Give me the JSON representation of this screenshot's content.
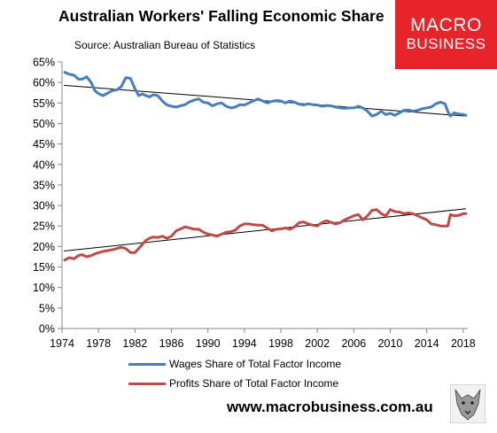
{
  "title": "Australian Workers' Falling Economic Share",
  "subtitle": "Source: Australian Bureau of Statistics",
  "logo": {
    "line1": "MACRO",
    "line2": "BUSINESS",
    "color": "#e8242b"
  },
  "url": "www.macrobusiness.com.au",
  "legend": {
    "wages": "Wages Share of Total Factor Income",
    "profits": "Profits Share of Total Factor Income"
  },
  "colors": {
    "wages": "#4a7ebb",
    "profits": "#be4b48",
    "trend": "#000000",
    "axis": "#868686"
  },
  "chart_data": {
    "type": "line",
    "title": "Australian Workers' Falling Economic Share",
    "subtitle": "Source: Australian Bureau of Statistics",
    "xlabel": "",
    "ylabel": "",
    "xlim": [
      1974,
      2018.5
    ],
    "ylim": [
      0,
      65
    ],
    "x_ticks": [
      1974,
      1978,
      1982,
      1986,
      1990,
      1994,
      1998,
      2002,
      2006,
      2010,
      2014,
      2018
    ],
    "y_ticks": [
      0,
      5,
      10,
      15,
      20,
      25,
      30,
      35,
      40,
      45,
      50,
      55,
      60,
      65
    ],
    "y_tick_format": "percent",
    "grid": false,
    "legend_position": "bottom",
    "series": [
      {
        "name": "Wages Share of Total Factor Income",
        "color": "#4a7ebb",
        "x": [
          1974.3,
          1974.8,
          1975.3,
          1975.8,
          1976.2,
          1976.7,
          1977.2,
          1977.6,
          1978.0,
          1978.5,
          1979.0,
          1979.5,
          1980.0,
          1980.5,
          1981.0,
          1981.5,
          1982.0,
          1982.4,
          1982.8,
          1983.2,
          1983.6,
          1984.0,
          1984.5,
          1985.0,
          1985.5,
          1986.0,
          1986.5,
          1987.0,
          1987.5,
          1988.0,
          1988.5,
          1989.0,
          1989.5,
          1990.0,
          1990.5,
          1991.0,
          1991.5,
          1992.0,
          1992.5,
          1993.0,
          1993.5,
          1994.0,
          1994.5,
          1995.0,
          1995.5,
          1996.0,
          1996.5,
          1997.0,
          1997.5,
          1998.0,
          1998.5,
          1999.0,
          1999.5,
          2000.0,
          2000.5,
          2001.0,
          2001.5,
          2002.0,
          2002.5,
          2003.0,
          2003.5,
          2004.0,
          2004.5,
          2005.0,
          2005.5,
          2006.0,
          2006.5,
          2007.0,
          2007.5,
          2008.0,
          2008.5,
          2009.0,
          2009.5,
          2010.0,
          2010.5,
          2011.0,
          2011.5,
          2012.0,
          2012.5,
          2013.0,
          2013.5,
          2014.0,
          2014.5,
          2015.0,
          2015.5,
          2016.0,
          2016.3,
          2016.6,
          2017.0,
          2017.5,
          2018.0,
          2018.3
        ],
        "values": [
          62.5,
          62.0,
          61.8,
          60.8,
          60.8,
          61.4,
          60.0,
          58.0,
          57.3,
          56.8,
          57.4,
          58.0,
          58.2,
          59.0,
          61.2,
          61.0,
          58.5,
          56.8,
          57.2,
          56.8,
          56.5,
          57.0,
          56.8,
          55.5,
          54.5,
          54.2,
          54.0,
          54.3,
          54.6,
          55.3,
          55.7,
          56.0,
          55.2,
          55.0,
          54.3,
          54.8,
          55.0,
          54.2,
          53.8,
          54.0,
          54.6,
          54.5,
          55.0,
          55.5,
          56.0,
          55.5,
          55.0,
          55.4,
          55.6,
          55.5,
          55.0,
          55.5,
          55.2,
          54.7,
          54.5,
          54.8,
          54.6,
          54.5,
          54.2,
          54.4,
          54.3,
          54.0,
          53.8,
          53.7,
          53.8,
          53.8,
          54.2,
          53.8,
          53.0,
          51.8,
          52.2,
          53.0,
          52.2,
          52.5,
          52.0,
          52.6,
          53.2,
          53.3,
          53.0,
          53.2,
          53.6,
          53.8,
          54.0,
          54.8,
          55.2,
          54.8,
          53.0,
          51.8,
          52.6,
          52.3,
          52.2,
          52.0
        ]
      },
      {
        "name": "Profits Share of Total Factor Income",
        "color": "#be4b48",
        "x": [
          1974.3,
          1974.8,
          1975.3,
          1975.8,
          1976.2,
          1976.7,
          1977.2,
          1977.6,
          1978.0,
          1978.5,
          1979.0,
          1979.5,
          1980.0,
          1980.5,
          1981.0,
          1981.5,
          1982.0,
          1982.4,
          1982.8,
          1983.2,
          1983.6,
          1984.0,
          1984.5,
          1985.0,
          1985.5,
          1986.0,
          1986.5,
          1987.0,
          1987.5,
          1988.0,
          1988.5,
          1989.0,
          1989.5,
          1990.0,
          1990.5,
          1991.0,
          1991.5,
          1992.0,
          1992.5,
          1993.0,
          1993.5,
          1994.0,
          1994.5,
          1995.0,
          1995.5,
          1996.0,
          1996.5,
          1997.0,
          1997.5,
          1998.0,
          1998.5,
          1999.0,
          1999.5,
          2000.0,
          2000.5,
          2001.0,
          2001.5,
          2002.0,
          2002.5,
          2003.0,
          2003.5,
          2004.0,
          2004.5,
          2005.0,
          2005.5,
          2006.0,
          2006.5,
          2007.0,
          2007.5,
          2008.0,
          2008.5,
          2009.0,
          2009.5,
          2010.0,
          2010.5,
          2011.0,
          2011.5,
          2012.0,
          2012.5,
          2013.0,
          2013.5,
          2014.0,
          2014.5,
          2015.0,
          2015.5,
          2016.0,
          2016.3,
          2016.6,
          2017.0,
          2017.5,
          2018.0,
          2018.3
        ],
        "values": [
          16.7,
          17.3,
          17.0,
          17.8,
          18.0,
          17.5,
          17.8,
          18.2,
          18.5,
          18.8,
          19.0,
          19.2,
          19.5,
          19.8,
          19.5,
          18.5,
          18.5,
          19.5,
          20.5,
          21.5,
          22.0,
          22.3,
          22.2,
          22.5,
          22.0,
          22.5,
          23.8,
          24.3,
          24.8,
          24.5,
          24.2,
          24.2,
          23.5,
          23.0,
          22.8,
          22.5,
          23.0,
          23.5,
          23.6,
          24.0,
          25.0,
          25.5,
          25.5,
          25.3,
          25.2,
          25.2,
          24.5,
          23.8,
          24.2,
          24.3,
          24.5,
          24.2,
          24.8,
          25.8,
          26.0,
          25.5,
          25.2,
          25.0,
          25.8,
          26.3,
          25.9,
          25.5,
          25.8,
          26.5,
          27.0,
          27.5,
          27.8,
          26.5,
          27.5,
          28.8,
          29.0,
          28.0,
          27.5,
          29.0,
          28.5,
          28.4,
          28.0,
          28.2,
          28.0,
          27.5,
          27.0,
          26.5,
          25.5,
          25.3,
          25.0,
          25.0,
          25.0,
          27.8,
          27.5,
          27.6,
          28.0,
          28.0
        ]
      }
    ],
    "trendlines": [
      {
        "of": "Wages Share of Total Factor Income",
        "x": [
          1974.2,
          2018.3
        ],
        "values": [
          59.3,
          51.8
        ]
      },
      {
        "of": "Profits Share of Total Factor Income",
        "x": [
          1974.2,
          2018.3
        ],
        "values": [
          18.9,
          29.2
        ]
      }
    ]
  }
}
